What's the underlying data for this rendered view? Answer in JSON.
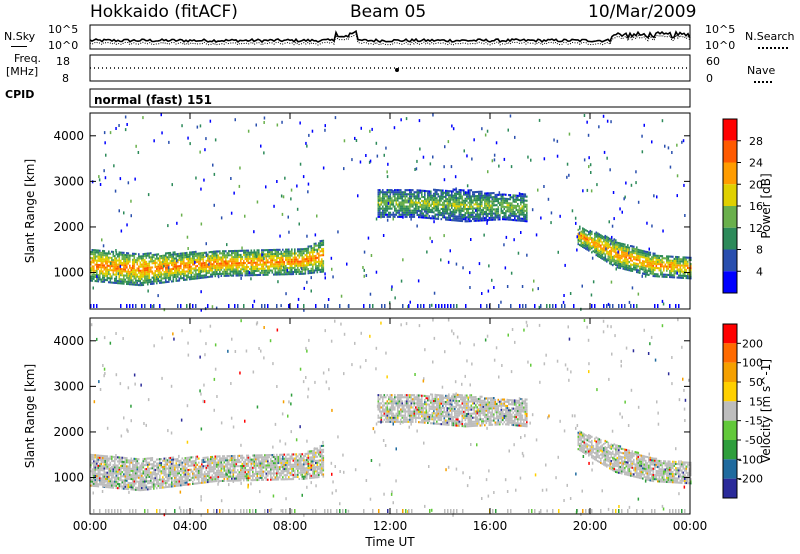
{
  "header": {
    "station": "Hokkaido (fitACF)",
    "beam": "Beam 05",
    "date": "10/Mar/2009"
  },
  "noise_panel": {
    "left_label": "N.Sky",
    "left_top_tick": "10^5",
    "left_bottom_tick": "10^0",
    "right_label": "N.Search",
    "right_top_tick": "10^5",
    "right_bottom_tick": "10^0"
  },
  "freq_panel": {
    "left_label_line1": "Freq.",
    "left_label_line2": "[MHz]",
    "left_top_tick": "18",
    "left_bottom_tick": "8",
    "right_label": "Nave",
    "right_top_tick": "60",
    "right_bottom_tick": "0"
  },
  "cpid_panel": {
    "label": "CPID",
    "mode_text": "normal (fast) 151"
  },
  "colors": {
    "power_scale": [
      "#0000ff",
      "#2a4fae",
      "#2d8a5a",
      "#6ab04c",
      "#e0d000",
      "#ff9c00",
      "#ff5a00",
      "#ff0000"
    ],
    "velocity_scale": [
      "#2b2b9a",
      "#1f6a9e",
      "#2e9e3c",
      "#62c93a",
      "#bdbdbd",
      "#ffd000",
      "#f5a000",
      "#ff6a00",
      "#ff0000"
    ]
  },
  "chart_data": [
    {
      "type": "heatmap",
      "title": "Power",
      "ylabel": "Slant Range [km]",
      "xlabel": "",
      "x_ticks": [
        "00:00",
        "04:00",
        "08:00",
        "12:00",
        "16:00",
        "20:00",
        "00:00"
      ],
      "y_ticks": [
        "1000",
        "2000",
        "3000",
        "4000"
      ],
      "ylim": [
        200,
        4500
      ],
      "colorbar": {
        "label": "Power [dB]",
        "ticks": [
          "4",
          "8",
          "12",
          "16",
          "20",
          "24",
          "28"
        ],
        "range": [
          0,
          32
        ]
      },
      "bands": [
        {
          "t": [
            0,
            2,
            5,
            8.5,
            9.3
          ],
          "lo": [
            800,
            700,
            900,
            950,
            1000
          ],
          "hi": [
            1500,
            1400,
            1450,
            1500,
            1700
          ],
          "value": 22
        },
        {
          "t": [
            11.5,
            13,
            15,
            16.5,
            17.5
          ],
          "lo": [
            2200,
            2200,
            2100,
            2150,
            2100
          ],
          "hi": [
            2800,
            2800,
            2800,
            2700,
            2700
          ],
          "value": 14
        },
        {
          "t": [
            19.5,
            21,
            22.5,
            24
          ],
          "lo": [
            1600,
            1100,
            900,
            850
          ],
          "hi": [
            2000,
            1700,
            1400,
            1300
          ],
          "value": 21
        }
      ]
    },
    {
      "type": "heatmap",
      "title": "Velocity",
      "ylabel": "Slant Range [km]",
      "xlabel": "Time UT",
      "x_ticks": [
        "00:00",
        "04:00",
        "08:00",
        "12:00",
        "16:00",
        "20:00",
        "00:00"
      ],
      "y_ticks": [
        "1000",
        "2000",
        "3000",
        "4000"
      ],
      "ylim": [
        200,
        4500
      ],
      "colorbar": {
        "label": "Velocity [m s^-1]",
        "ticks": [
          "200",
          "100",
          "50",
          "15",
          "-15",
          "-50",
          "-100",
          "-200"
        ],
        "range": [
          -250,
          250
        ]
      },
      "bands": [
        {
          "t": [
            0,
            2,
            5,
            8.5,
            9.3
          ],
          "lo": [
            800,
            700,
            900,
            950,
            1000
          ],
          "hi": [
            1500,
            1400,
            1450,
            1500,
            1700
          ],
          "value": 0
        },
        {
          "t": [
            11.5,
            13,
            15,
            16.5,
            17.5
          ],
          "lo": [
            2200,
            2200,
            2100,
            2150,
            2100
          ],
          "hi": [
            2800,
            2800,
            2800,
            2700,
            2700
          ],
          "value": 0
        },
        {
          "t": [
            19.5,
            21,
            22.5,
            24
          ],
          "lo": [
            1600,
            1100,
            900,
            850
          ],
          "hi": [
            2000,
            1700,
            1400,
            1300
          ],
          "value": 0
        }
      ]
    }
  ]
}
